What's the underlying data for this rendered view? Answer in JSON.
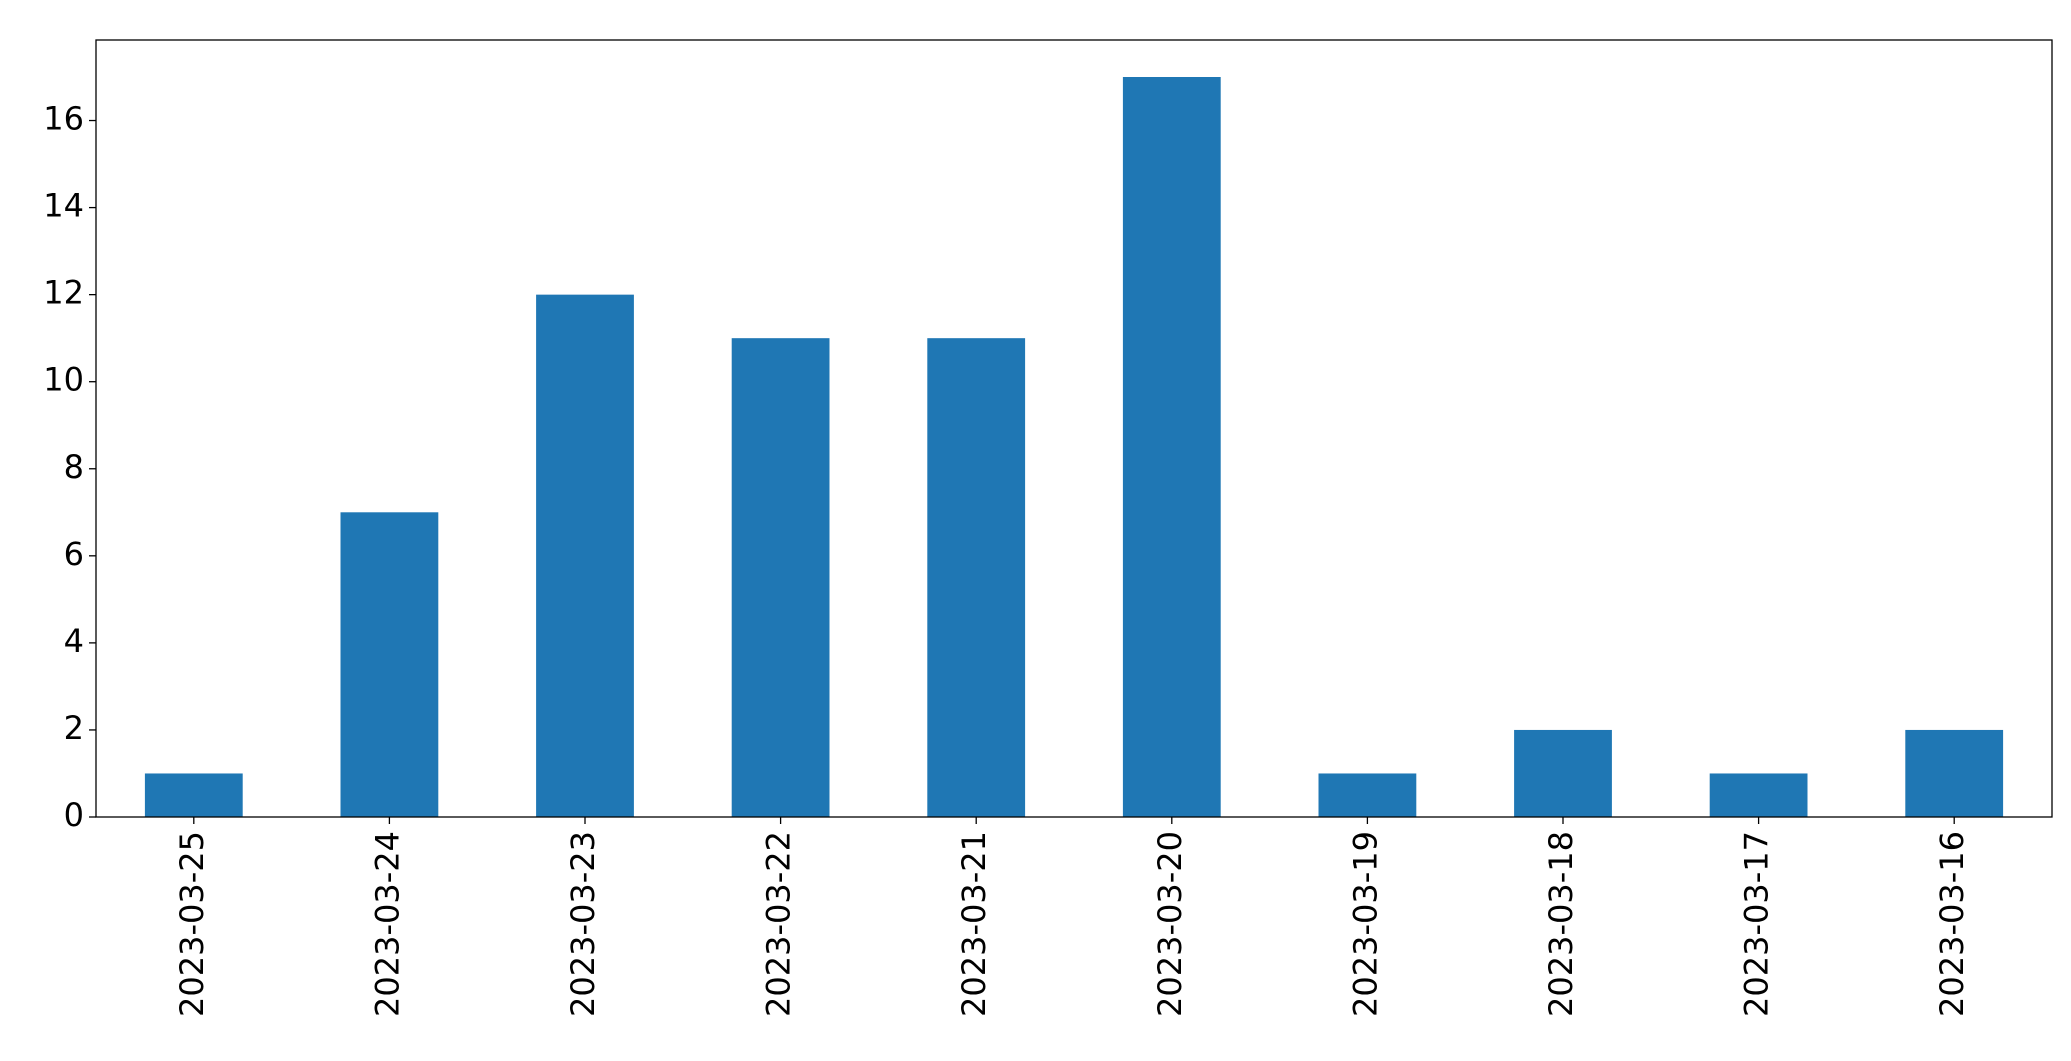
{
  "chart_data": {
    "type": "bar",
    "categories": [
      "2023-03-25",
      "2023-03-24",
      "2023-03-23",
      "2023-03-22",
      "2023-03-21",
      "2023-03-20",
      "2023-03-19",
      "2023-03-18",
      "2023-03-17",
      "2023-03-16"
    ],
    "values": [
      1,
      7,
      12,
      11,
      11,
      17,
      1,
      2,
      1,
      2
    ],
    "color": "#1f77b4",
    "ylim": [
      0,
      17.85
    ],
    "yticks": [
      0,
      2,
      4,
      6,
      8,
      10,
      12,
      14,
      16
    ],
    "grid": false
  }
}
